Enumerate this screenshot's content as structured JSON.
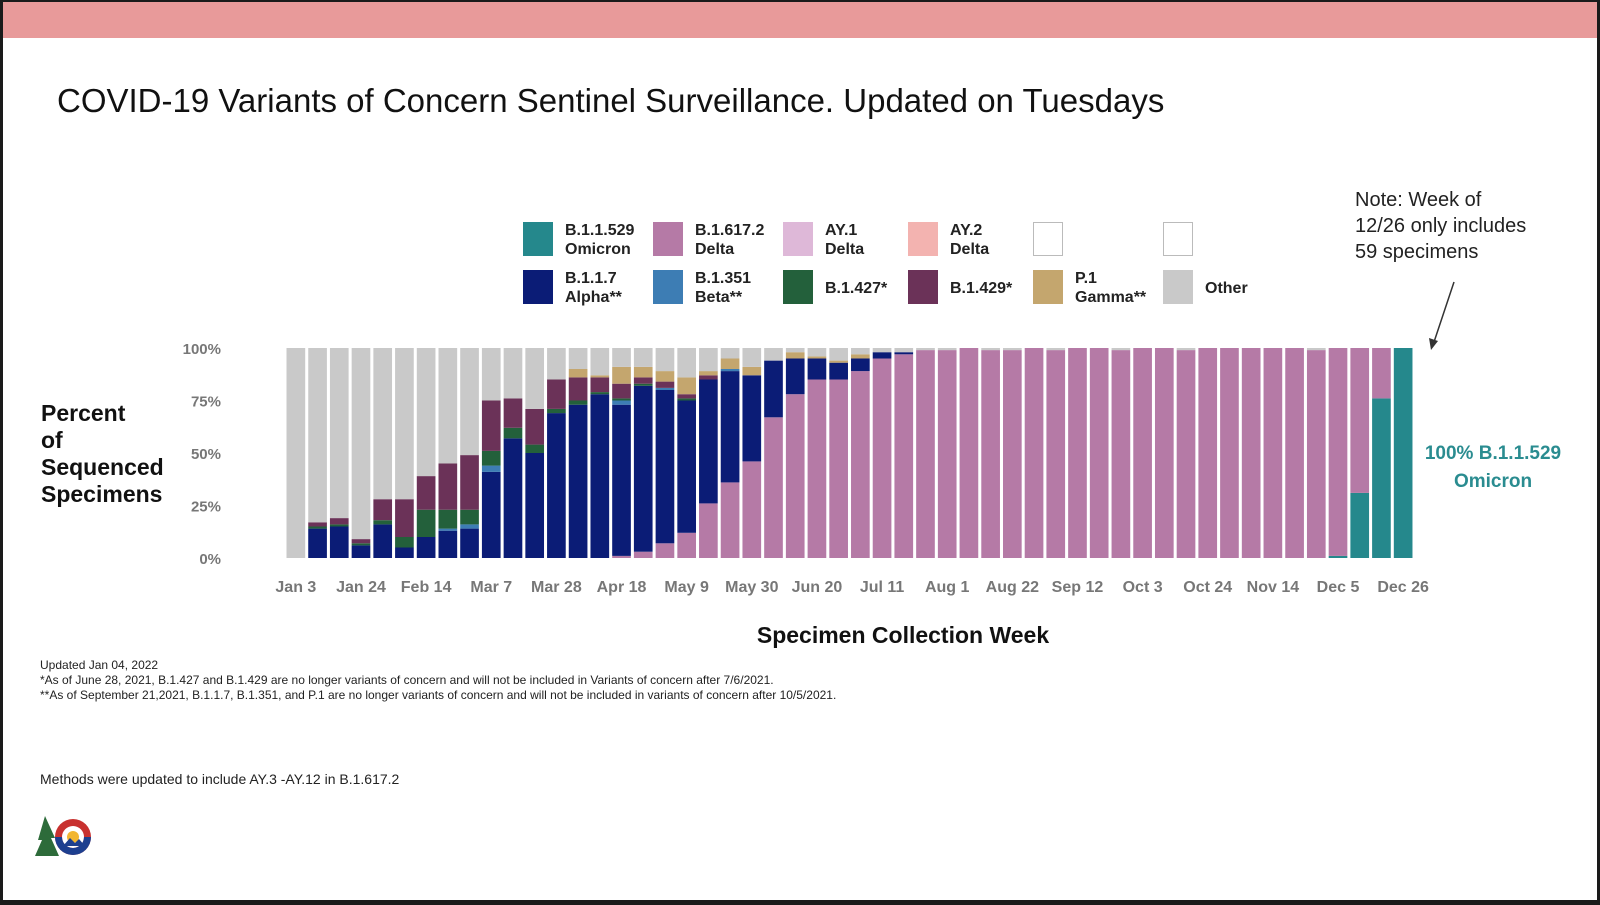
{
  "title": "COVID-19 Variants of Concern Sentinel Surveillance. Updated on Tuesdays",
  "note": "Note: Week of\n12/26 only includes\n59 specimens",
  "legend": [
    {
      "key": "omicron",
      "label": "B.1.1.529\nOmicron",
      "color": "#25888c"
    },
    {
      "key": "delta",
      "label": "B.1.617.2\nDelta",
      "color": "#b57aa6"
    },
    {
      "key": "ay1",
      "label": "AY.1\nDelta",
      "color": "#deb8d8"
    },
    {
      "key": "ay2",
      "label": "AY.2\nDelta",
      "color": "#f3b3b0"
    },
    {
      "key": "blank1",
      "label": "",
      "color": "#ffffff"
    },
    {
      "key": "blank2",
      "label": "",
      "color": "#ffffff"
    },
    {
      "key": "alpha",
      "label": "B.1.1.7\nAlpha**",
      "color": "#0b1c76"
    },
    {
      "key": "beta",
      "label": "B.1.351\nBeta**",
      "color": "#3d7db4"
    },
    {
      "key": "b1427",
      "label": "B.1.427*",
      "color": "#23603b"
    },
    {
      "key": "b1429",
      "label": "B.1.429*",
      "color": "#6b3258"
    },
    {
      "key": "gamma",
      "label": "P.1\nGamma**",
      "color": "#c4a66e"
    },
    {
      "key": "other",
      "label": "Other",
      "color": "#c9c9c9"
    }
  ],
  "axis": {
    "ylabel": "Percent\nof\nSequenced\nSpecimens",
    "xlabel": "Specimen Collection Week"
  },
  "omicron_annotation": "100% B.1.1.529\nOmicron",
  "footnotes": [
    "Updated Jan 04, 2022",
    "*As of June 28, 2021, B.1.427 and B.1.429 are no longer variants of concern and will not be included in Variants of concern after 7/6/2021.",
    "**As of September 21,2021, B.1.1.7, B.1.351,  and P.1 are no longer variants of concern and will not be included in variants of concern after 10/5/2021."
  ],
  "methods": "Methods were updated to include AY.3 -AY.12 in B.1.617.2",
  "chart_data": {
    "type": "bar",
    "stacked": true,
    "ylim": [
      0,
      100
    ],
    "yticks": [
      "0%",
      "25%",
      "50%",
      "75%",
      "100%"
    ],
    "xtick_labels": [
      "Jan 3",
      "Jan 24",
      "Feb 14",
      "Mar 7",
      "Mar 28",
      "Apr 18",
      "May 9",
      "May 30",
      "Jun 20",
      "Jul 11",
      "Aug 1",
      "Aug 22",
      "Sep 12",
      "Oct 3",
      "Oct 24",
      "Nov 14",
      "Dec 5",
      "Dec 26"
    ],
    "xlabel": "Specimen Collection Week",
    "ylabel": "Percent of Sequenced Specimens",
    "stack_order": [
      "omicron",
      "delta",
      "ay1",
      "ay2",
      "alpha",
      "beta",
      "b1427",
      "b1429",
      "gamma",
      "other"
    ],
    "weeks": [
      {
        "week": "Jan 3",
        "omicron": 0,
        "delta": 0,
        "ay1": 0,
        "ay2": 0,
        "alpha": 0,
        "beta": 0,
        "b1427": 0,
        "b1429": 0,
        "gamma": 0,
        "other": 100
      },
      {
        "week": "Jan 10",
        "omicron": 0,
        "delta": 0,
        "ay1": 0,
        "ay2": 0,
        "alpha": 14,
        "beta": 0,
        "b1427": 1,
        "b1429": 2,
        "gamma": 0,
        "other": 83
      },
      {
        "week": "Jan 17",
        "omicron": 0,
        "delta": 0,
        "ay1": 0,
        "ay2": 0,
        "alpha": 15,
        "beta": 0,
        "b1427": 1,
        "b1429": 3,
        "gamma": 0,
        "other": 81
      },
      {
        "week": "Jan 24",
        "omicron": 0,
        "delta": 0,
        "ay1": 0,
        "ay2": 0,
        "alpha": 6,
        "beta": 0,
        "b1427": 1,
        "b1429": 2,
        "gamma": 0,
        "other": 91
      },
      {
        "week": "Jan 31",
        "omicron": 0,
        "delta": 0,
        "ay1": 0,
        "ay2": 0,
        "alpha": 16,
        "beta": 0,
        "b1427": 2,
        "b1429": 10,
        "gamma": 0,
        "other": 72
      },
      {
        "week": "Feb 7",
        "omicron": 0,
        "delta": 0,
        "ay1": 0,
        "ay2": 0,
        "alpha": 5,
        "beta": 0,
        "b1427": 5,
        "b1429": 18,
        "gamma": 0,
        "other": 72
      },
      {
        "week": "Feb 14",
        "omicron": 0,
        "delta": 0,
        "ay1": 0,
        "ay2": 0,
        "alpha": 10,
        "beta": 0,
        "b1427": 13,
        "b1429": 16,
        "gamma": 0,
        "other": 61
      },
      {
        "week": "Feb 21",
        "omicron": 0,
        "delta": 0,
        "ay1": 0,
        "ay2": 0,
        "alpha": 13,
        "beta": 1,
        "b1427": 9,
        "b1429": 22,
        "gamma": 0,
        "other": 55
      },
      {
        "week": "Feb 28",
        "omicron": 0,
        "delta": 0,
        "ay1": 0,
        "ay2": 0,
        "alpha": 14,
        "beta": 2,
        "b1427": 7,
        "b1429": 26,
        "gamma": 0,
        "other": 51
      },
      {
        "week": "Mar 7",
        "omicron": 0,
        "delta": 0,
        "ay1": 0,
        "ay2": 0,
        "alpha": 41,
        "beta": 3,
        "b1427": 7,
        "b1429": 24,
        "gamma": 0,
        "other": 25
      },
      {
        "week": "Mar 14",
        "omicron": 0,
        "delta": 0,
        "ay1": 0,
        "ay2": 0,
        "alpha": 57,
        "beta": 0,
        "b1427": 5,
        "b1429": 14,
        "gamma": 0,
        "other": 24
      },
      {
        "week": "Mar 21",
        "omicron": 0,
        "delta": 0,
        "ay1": 0,
        "ay2": 0,
        "alpha": 50,
        "beta": 0,
        "b1427": 4,
        "b1429": 17,
        "gamma": 0,
        "other": 29
      },
      {
        "week": "Mar 28",
        "omicron": 0,
        "delta": 0,
        "ay1": 0,
        "ay2": 0,
        "alpha": 69,
        "beta": 0,
        "b1427": 2,
        "b1429": 14,
        "gamma": 0,
        "other": 15
      },
      {
        "week": "Apr 4",
        "omicron": 0,
        "delta": 0,
        "ay1": 0,
        "ay2": 0,
        "alpha": 73,
        "beta": 0,
        "b1427": 2,
        "b1429": 11,
        "gamma": 4,
        "other": 10
      },
      {
        "week": "Apr 11",
        "omicron": 0,
        "delta": 0,
        "ay1": 0,
        "ay2": 0,
        "alpha": 78,
        "beta": 0,
        "b1427": 1,
        "b1429": 7,
        "gamma": 1,
        "other": 13
      },
      {
        "week": "Apr 18",
        "omicron": 0,
        "delta": 1,
        "ay1": 0,
        "ay2": 0,
        "alpha": 72,
        "beta": 2,
        "b1427": 1,
        "b1429": 7,
        "gamma": 8,
        "other": 9
      },
      {
        "week": "Apr 25",
        "omicron": 0,
        "delta": 3,
        "ay1": 0,
        "ay2": 0,
        "alpha": 79,
        "beta": 0,
        "b1427": 1,
        "b1429": 3,
        "gamma": 5,
        "other": 9
      },
      {
        "week": "May 2",
        "omicron": 0,
        "delta": 7,
        "ay1": 0,
        "ay2": 0,
        "alpha": 73,
        "beta": 1,
        "b1427": 0,
        "b1429": 3,
        "gamma": 5,
        "other": 11
      },
      {
        "week": "May 9",
        "omicron": 0,
        "delta": 12,
        "ay1": 0,
        "ay2": 0,
        "alpha": 63,
        "beta": 0,
        "b1427": 1,
        "b1429": 2,
        "gamma": 8,
        "other": 14
      },
      {
        "week": "May 16",
        "omicron": 0,
        "delta": 26,
        "ay1": 0,
        "ay2": 0,
        "alpha": 59,
        "beta": 0,
        "b1427": 0,
        "b1429": 2,
        "gamma": 2,
        "other": 11
      },
      {
        "week": "May 23",
        "omicron": 0,
        "delta": 36,
        "ay1": 0,
        "ay2": 0,
        "alpha": 53,
        "beta": 1,
        "b1427": 0,
        "b1429": 0,
        "gamma": 5,
        "other": 5
      },
      {
        "week": "May 30",
        "omicron": 0,
        "delta": 46,
        "ay1": 0,
        "ay2": 0,
        "alpha": 41,
        "beta": 0,
        "b1427": 0,
        "b1429": 0,
        "gamma": 4,
        "other": 9
      },
      {
        "week": "Jun 6",
        "omicron": 0,
        "delta": 67,
        "ay1": 0,
        "ay2": 0,
        "alpha": 27,
        "beta": 0,
        "b1427": 0,
        "b1429": 0,
        "gamma": 0,
        "other": 6
      },
      {
        "week": "Jun 13",
        "omicron": 0,
        "delta": 78,
        "ay1": 0,
        "ay2": 0,
        "alpha": 17,
        "beta": 0,
        "b1427": 0,
        "b1429": 0,
        "gamma": 3,
        "other": 2
      },
      {
        "week": "Jun 20",
        "omicron": 0,
        "delta": 85,
        "ay1": 0,
        "ay2": 0,
        "alpha": 10,
        "beta": 0,
        "b1427": 0,
        "b1429": 0,
        "gamma": 1,
        "other": 4
      },
      {
        "week": "Jun 27",
        "omicron": 0,
        "delta": 85,
        "ay1": 0,
        "ay2": 0,
        "alpha": 8,
        "beta": 0,
        "b1427": 0,
        "b1429": 0,
        "gamma": 1,
        "other": 6
      },
      {
        "week": "Jul 4",
        "omicron": 0,
        "delta": 89,
        "ay1": 0,
        "ay2": 0,
        "alpha": 6,
        "beta": 0,
        "b1427": 0,
        "b1429": 0,
        "gamma": 2,
        "other": 3
      },
      {
        "week": "Jul 11",
        "omicron": 0,
        "delta": 95,
        "ay1": 0,
        "ay2": 0,
        "alpha": 3,
        "beta": 0,
        "b1427": 0,
        "b1429": 0,
        "gamma": 0,
        "other": 2
      },
      {
        "week": "Jul 18",
        "omicron": 0,
        "delta": 97,
        "ay1": 0,
        "ay2": 0,
        "alpha": 1,
        "beta": 0,
        "b1427": 0,
        "b1429": 0,
        "gamma": 0,
        "other": 2
      },
      {
        "week": "Jul 25",
        "omicron": 0,
        "delta": 99,
        "ay1": 0,
        "ay2": 0,
        "alpha": 0,
        "beta": 0,
        "b1427": 0,
        "b1429": 0,
        "gamma": 0,
        "other": 1
      },
      {
        "week": "Aug 1",
        "omicron": 0,
        "delta": 99,
        "ay1": 0,
        "ay2": 0,
        "alpha": 0,
        "beta": 0,
        "b1427": 0,
        "b1429": 0,
        "gamma": 0,
        "other": 1
      },
      {
        "week": "Aug 8",
        "omicron": 0,
        "delta": 100,
        "ay1": 0,
        "ay2": 0,
        "alpha": 0,
        "beta": 0,
        "b1427": 0,
        "b1429": 0,
        "gamma": 0,
        "other": 0
      },
      {
        "week": "Aug 15",
        "omicron": 0,
        "delta": 99,
        "ay1": 0,
        "ay2": 0,
        "alpha": 0,
        "beta": 0,
        "b1427": 0,
        "b1429": 0,
        "gamma": 0,
        "other": 1
      },
      {
        "week": "Aug 22",
        "omicron": 0,
        "delta": 99,
        "ay1": 0,
        "ay2": 0,
        "alpha": 0,
        "beta": 0,
        "b1427": 0,
        "b1429": 0,
        "gamma": 0,
        "other": 1
      },
      {
        "week": "Aug 29",
        "omicron": 0,
        "delta": 100,
        "ay1": 0,
        "ay2": 0,
        "alpha": 0,
        "beta": 0,
        "b1427": 0,
        "b1429": 0,
        "gamma": 0,
        "other": 0
      },
      {
        "week": "Sep 5",
        "omicron": 0,
        "delta": 99,
        "ay1": 0,
        "ay2": 0,
        "alpha": 0,
        "beta": 0,
        "b1427": 0,
        "b1429": 0,
        "gamma": 0,
        "other": 1
      },
      {
        "week": "Sep 12",
        "omicron": 0,
        "delta": 100,
        "ay1": 0,
        "ay2": 0,
        "alpha": 0,
        "beta": 0,
        "b1427": 0,
        "b1429": 0,
        "gamma": 0,
        "other": 0
      },
      {
        "week": "Sep 19",
        "omicron": 0,
        "delta": 100,
        "ay1": 0,
        "ay2": 0,
        "alpha": 0,
        "beta": 0,
        "b1427": 0,
        "b1429": 0,
        "gamma": 0,
        "other": 0
      },
      {
        "week": "Sep 26",
        "omicron": 0,
        "delta": 99,
        "ay1": 0,
        "ay2": 0,
        "alpha": 0,
        "beta": 0,
        "b1427": 0,
        "b1429": 0,
        "gamma": 0,
        "other": 1
      },
      {
        "week": "Oct 3",
        "omicron": 0,
        "delta": 100,
        "ay1": 0,
        "ay2": 0,
        "alpha": 0,
        "beta": 0,
        "b1427": 0,
        "b1429": 0,
        "gamma": 0,
        "other": 0
      },
      {
        "week": "Oct 10",
        "omicron": 0,
        "delta": 100,
        "ay1": 0,
        "ay2": 0,
        "alpha": 0,
        "beta": 0,
        "b1427": 0,
        "b1429": 0,
        "gamma": 0,
        "other": 0
      },
      {
        "week": "Oct 17",
        "omicron": 0,
        "delta": 99,
        "ay1": 0,
        "ay2": 0,
        "alpha": 0,
        "beta": 0,
        "b1427": 0,
        "b1429": 0,
        "gamma": 0,
        "other": 1
      },
      {
        "week": "Oct 24",
        "omicron": 0,
        "delta": 100,
        "ay1": 0,
        "ay2": 0,
        "alpha": 0,
        "beta": 0,
        "b1427": 0,
        "b1429": 0,
        "gamma": 0,
        "other": 0
      },
      {
        "week": "Oct 31",
        "omicron": 0,
        "delta": 100,
        "ay1": 0,
        "ay2": 0,
        "alpha": 0,
        "beta": 0,
        "b1427": 0,
        "b1429": 0,
        "gamma": 0,
        "other": 0
      },
      {
        "week": "Nov 7",
        "omicron": 0,
        "delta": 100,
        "ay1": 0,
        "ay2": 0,
        "alpha": 0,
        "beta": 0,
        "b1427": 0,
        "b1429": 0,
        "gamma": 0,
        "other": 0
      },
      {
        "week": "Nov 14",
        "omicron": 0,
        "delta": 100,
        "ay1": 0,
        "ay2": 0,
        "alpha": 0,
        "beta": 0,
        "b1427": 0,
        "b1429": 0,
        "gamma": 0,
        "other": 0
      },
      {
        "week": "Nov 21",
        "omicron": 0,
        "delta": 100,
        "ay1": 0,
        "ay2": 0,
        "alpha": 0,
        "beta": 0,
        "b1427": 0,
        "b1429": 0,
        "gamma": 0,
        "other": 0
      },
      {
        "week": "Nov 28",
        "omicron": 0,
        "delta": 99,
        "ay1": 0,
        "ay2": 0,
        "alpha": 0,
        "beta": 0,
        "b1427": 0,
        "b1429": 0,
        "gamma": 0,
        "other": 1
      },
      {
        "week": "Dec 5",
        "omicron": 1,
        "delta": 99,
        "ay1": 0,
        "ay2": 0,
        "alpha": 0,
        "beta": 0,
        "b1427": 0,
        "b1429": 0,
        "gamma": 0,
        "other": 0
      },
      {
        "week": "Dec 12",
        "omicron": 31,
        "delta": 69,
        "ay1": 0,
        "ay2": 0,
        "alpha": 0,
        "beta": 0,
        "b1427": 0,
        "b1429": 0,
        "gamma": 0,
        "other": 0
      },
      {
        "week": "Dec 19",
        "omicron": 76,
        "delta": 24,
        "ay1": 0,
        "ay2": 0,
        "alpha": 0,
        "beta": 0,
        "b1427": 0,
        "b1429": 0,
        "gamma": 0,
        "other": 0
      },
      {
        "week": "Dec 26",
        "omicron": 100,
        "delta": 0,
        "ay1": 0,
        "ay2": 0,
        "alpha": 0,
        "beta": 0,
        "b1427": 0,
        "b1429": 0,
        "gamma": 0,
        "other": 0
      }
    ]
  }
}
